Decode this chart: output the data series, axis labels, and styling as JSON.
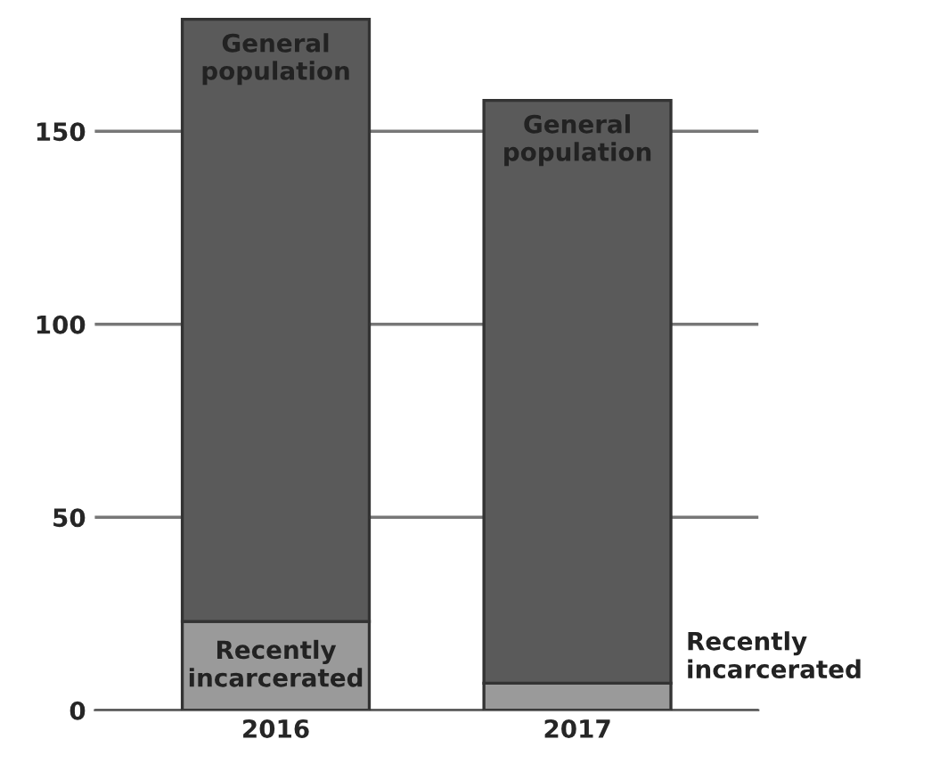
{
  "chart_data": {
    "type": "bar",
    "stacked": true,
    "categories": [
      "2016",
      "2017"
    ],
    "series": [
      {
        "name": "Recently incarcerated",
        "color": "#9a9a9a",
        "values": [
          23,
          7
        ]
      },
      {
        "name": "General population",
        "color": "#5a5a5a",
        "values": [
          156,
          151
        ]
      }
    ],
    "ylim": [
      0,
      180
    ],
    "yticks": [
      0,
      50,
      100,
      150
    ],
    "grid": "y",
    "legend": false
  }
}
